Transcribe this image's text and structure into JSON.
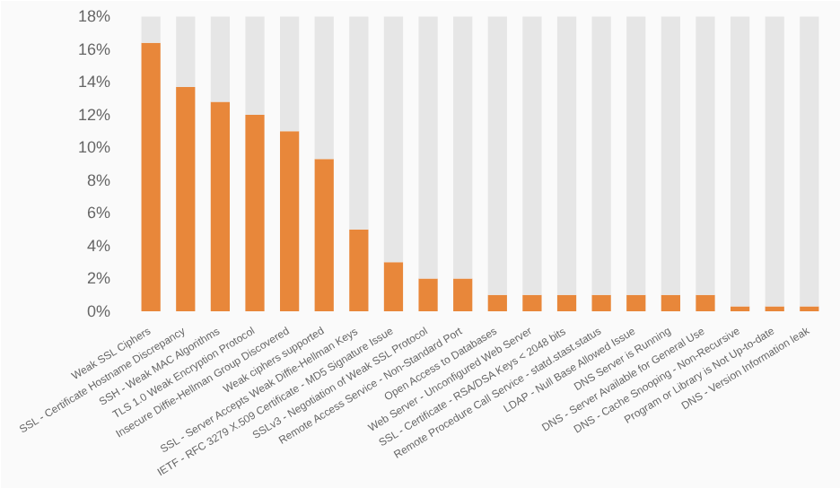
{
  "chart_data": {
    "type": "bar",
    "stacked": true,
    "categories": [
      "Weak SSL Ciphers",
      "SSL - Certificate Hostname Discrepancy",
      "SSH - Weak MAC Algorithms",
      "TLS 1.0 Weak Encryption Protocol",
      "Insecure Diffie-Hellman Group Discovered",
      "Weak ciphers supported",
      "SSL - Server Accepts Weak Diffie-Hellman Keys",
      "IETF - RFC 3279 X.509 Certificate - MD5 Signature Issue",
      "SSLv3 - Negotiation of Weak SSL Protocol",
      "Remote Access Service - Non-Standard Port",
      "Open Access to Databases",
      "Web Server - Unconfigured Web Server",
      "SSL - Certificate - RSA/DSA Keys < 2048 bits",
      "Remote Procedure Call Service - statd.stast.status",
      "LDAP - Null Base Allowed Issue",
      "DNS Server is Running",
      "DNS - Server Available for General Use",
      "DNS - Cache Snooping - Non-Recursive",
      "Program or Library is Not Up-to-date",
      "DNS - Version Information leak"
    ],
    "series": [
      {
        "color": "#e8873a",
        "values": [
          16.4,
          13.7,
          12.8,
          12.0,
          11.0,
          9.3,
          5.0,
          3.0,
          2.0,
          2.0,
          1.0,
          1.0,
          1.0,
          1.0,
          1.0,
          1.0,
          1.0,
          0.3,
          0.3,
          0.3
        ]
      },
      {
        "color": "#e6e6e6",
        "values": [
          1.6,
          4.3,
          5.2,
          6.0,
          7.0,
          8.7,
          13.0,
          15.0,
          16.0,
          16.0,
          17.0,
          17.0,
          17.0,
          17.0,
          17.0,
          17.0,
          17.0,
          17.7,
          17.7,
          17.7
        ]
      }
    ],
    "ylim": [
      0,
      18.3
    ],
    "yticks": [
      {
        "value": 0,
        "label": "0%"
      },
      {
        "value": 2,
        "label": "2%"
      },
      {
        "value": 4,
        "label": "4%"
      },
      {
        "value": 6,
        "label": "6%"
      },
      {
        "value": 8,
        "label": "8%"
      },
      {
        "value": 10,
        "label": "10%"
      },
      {
        "value": 12,
        "label": "12%"
      },
      {
        "value": 14,
        "label": "14%"
      },
      {
        "value": 16,
        "label": "16%"
      },
      {
        "value": 18,
        "label": "18%"
      }
    ],
    "grid": false
  }
}
